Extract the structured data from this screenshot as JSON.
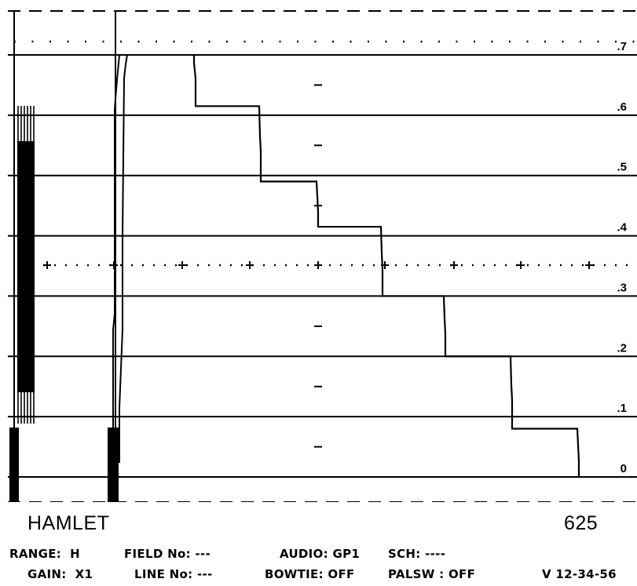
{
  "instrument": {
    "brand": "HAMLET",
    "line_standard": "625"
  },
  "scale": {
    "labels": [
      ".7",
      ".6",
      ".5",
      ".4",
      ".3",
      ".2",
      ".1",
      "0"
    ],
    "values": [
      0.7,
      0.6,
      0.5,
      0.4,
      0.3,
      0.2,
      0.1,
      0.0
    ]
  },
  "chart_data": {
    "type": "line",
    "yticks": [
      ".7",
      ".6",
      ".5",
      ".4",
      ".3",
      ".2",
      ".1",
      "0"
    ],
    "ylim": [
      0,
      0.7
    ],
    "series": [
      {
        "values": [
          0.7,
          0.615,
          0.49,
          0.415,
          0.3,
          0.2,
          0.08,
          0.0
        ]
      }
    ],
    "grid": true
  },
  "status": {
    "range_label": "RANGE:",
    "range_value": "H",
    "gain_label": "GAIN:",
    "gain_value": "X1",
    "field_label": "FIELD No:",
    "field_value": "---",
    "line_label": "LINE No:",
    "line_value": "---",
    "audio_label": "AUDIO:",
    "audio_value": "GP1",
    "bowtie_label": "BOWTIE:",
    "bowtie_value": "OFF",
    "sch_label": "SCH:",
    "sch_value": "----",
    "palsw_label": "PALSW :",
    "palsw_value": "OFF",
    "version": "V 12-34-56"
  }
}
